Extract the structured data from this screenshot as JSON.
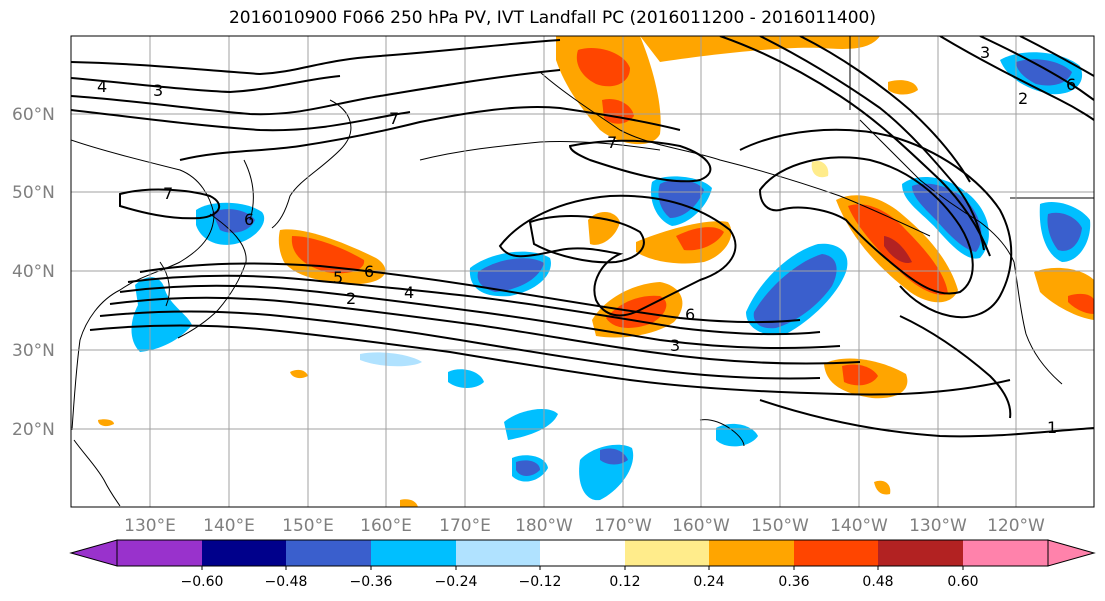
{
  "title": "2016010900 F066 250 hPa PV, IVT Landfall PC (2016011200 - 2016011400)",
  "lat_labels": [
    "60°N",
    "50°N",
    "40°N",
    "30°N",
    "20°N"
  ],
  "lon_labels": [
    "130°E",
    "140°E",
    "150°E",
    "160°E",
    "170°E",
    "180°W",
    "170°W",
    "160°W",
    "150°W",
    "140°W",
    "130°W",
    "120°W"
  ],
  "contour_labels": [
    "4",
    "3",
    "7",
    "7",
    "7",
    "6",
    "5",
    "6",
    "2",
    "4",
    "6",
    "3",
    "1",
    "3",
    "2",
    "6"
  ],
  "colorbar": {
    "ticks": [
      "−0.60",
      "−0.48",
      "−0.36",
      "−0.24",
      "−0.12",
      "0.12",
      "0.24",
      "0.36",
      "0.48",
      "0.60"
    ],
    "colors": [
      "#9932cc",
      "#00008b",
      "#3a5fcd",
      "#00bfff",
      "#b0e2ff",
      "#ffffff",
      "#ffec8b",
      "#ffa500",
      "#ff4500",
      "#b22222",
      "#ff82ab"
    ]
  },
  "fill_colors": {
    "neg_light": "#00bfff",
    "neg_mid": "#3a5fcd",
    "neg_pale": "#b0e2ff",
    "pos_pale": "#ffec8b",
    "pos_mid": "#ffa500",
    "pos_strong": "#ff4500",
    "pos_dark": "#b22222"
  }
}
